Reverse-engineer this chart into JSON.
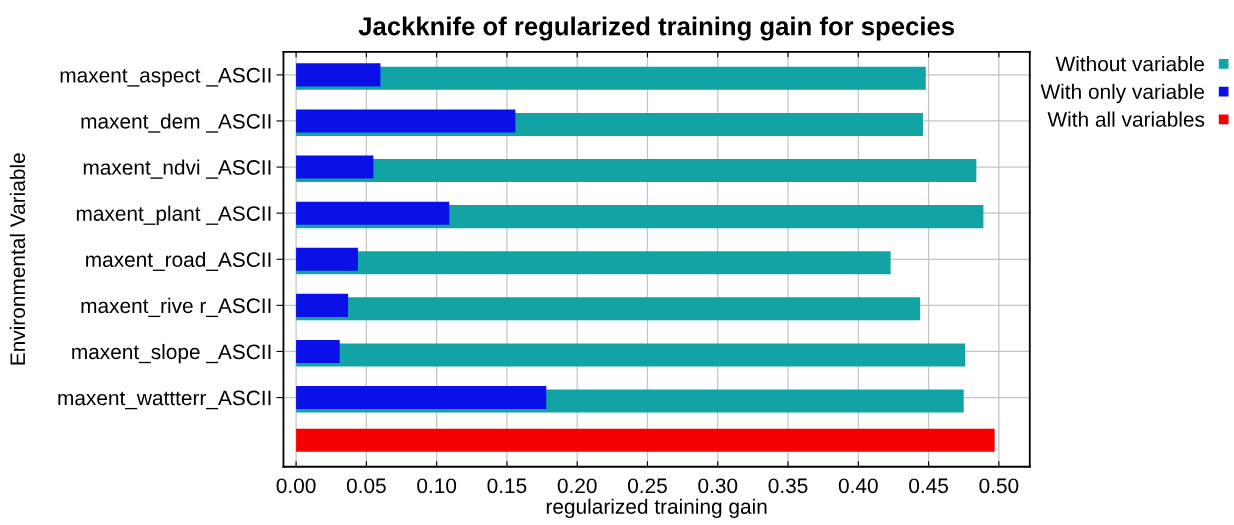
{
  "chart_data": {
    "type": "bar",
    "orientation": "horizontal",
    "title": "Jackknife of regularized training gain for species",
    "xlabel": "regularized training gain",
    "ylabel": "Environmental Variable",
    "categories": [
      "maxent_aspect _ASCII",
      "maxent_dem _ASCII",
      "maxent_ndvi _ASCII",
      "maxent_plant _ASCII",
      "maxent_road_ASCII",
      "maxent_rive r_ASCII",
      "maxent_slope _ASCII",
      "maxent_wattterr_ASCII",
      null
    ],
    "series": [
      {
        "name": "Without variable",
        "color": "#12a4a4",
        "values": [
          0.448,
          0.446,
          0.484,
          0.489,
          0.423,
          0.444,
          0.476,
          0.475,
          null
        ]
      },
      {
        "name": "With only variable",
        "color": "#0b10e6",
        "values": [
          0.06,
          0.156,
          0.055,
          0.109,
          0.044,
          0.037,
          0.031,
          0.178,
          null
        ]
      },
      {
        "name": "With all variables",
        "color": "#f50000",
        "values": [
          null,
          null,
          null,
          null,
          null,
          null,
          null,
          null,
          0.497
        ]
      }
    ],
    "xlim": [
      -0.009,
      0.522
    ],
    "xticks": [
      {
        "value": 0,
        "label": "0.00"
      },
      {
        "value": 0.05,
        "label": "0.05"
      },
      {
        "value": 0.1,
        "label": "0.10"
      },
      {
        "value": 0.15,
        "label": "0.15"
      },
      {
        "value": 0.2,
        "label": "0.20"
      },
      {
        "value": 0.25,
        "label": "0.25"
      },
      {
        "value": 0.3,
        "label": "0.30"
      },
      {
        "value": 0.35,
        "label": "0.35"
      },
      {
        "value": 0.4,
        "label": "0.40"
      },
      {
        "value": 0.45,
        "label": "0.45"
      },
      {
        "value": 0.5,
        "label": "0.50"
      }
    ],
    "grid": true,
    "legend": "top right"
  }
}
